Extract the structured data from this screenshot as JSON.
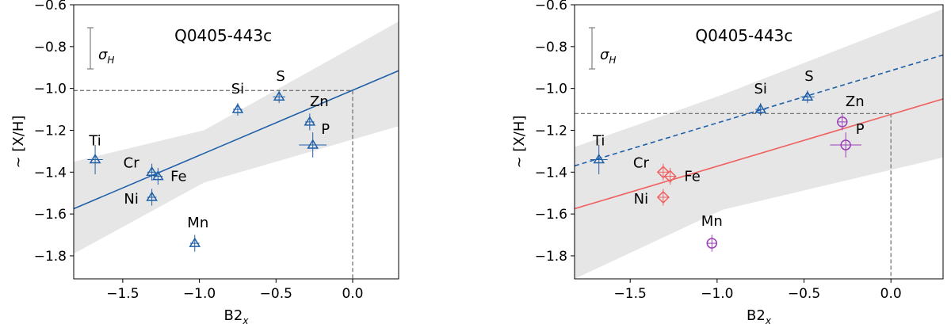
{
  "chart_data": [
    {
      "type": "scatter",
      "title": "Q0405-443c",
      "xlabel": "B2",
      "xlabel_sub": "x",
      "ylabel": "~ [X/H]",
      "xlim": [
        -1.82,
        0.3
      ],
      "ylim": [
        -1.91,
        -0.6
      ],
      "xticks": [
        -1.5,
        -1.0,
        -0.5,
        0.0
      ],
      "yticks": [
        -0.6,
        -0.8,
        -1.0,
        -1.2,
        -1.4,
        -1.6,
        -1.8
      ],
      "legend_scale_label": "σ",
      "legend_scale_sub": "H",
      "colors": {
        "points": "#1f5fa8",
        "fit": "#1f5fa8",
        "band": "#e6e6e6"
      },
      "points": [
        {
          "label": "Ti",
          "x": -1.68,
          "y": -1.34,
          "xerr": 0.05,
          "yerr": 0.07,
          "marker": "triangle"
        },
        {
          "label": "Cr",
          "x": -1.31,
          "y": -1.4,
          "xerr": 0.03,
          "yerr": 0.04,
          "marker": "triangle"
        },
        {
          "label": "Fe",
          "x": -1.27,
          "y": -1.42,
          "xerr": 0.03,
          "yerr": 0.04,
          "marker": "triangle"
        },
        {
          "label": "Ni",
          "x": -1.31,
          "y": -1.52,
          "xerr": 0.03,
          "yerr": 0.04,
          "marker": "triangle"
        },
        {
          "label": "Mn",
          "x": -1.03,
          "y": -1.74,
          "xerr": 0.03,
          "yerr": 0.04,
          "marker": "triangle"
        },
        {
          "label": "Si",
          "x": -0.75,
          "y": -1.1,
          "xerr": 0.03,
          "yerr": 0.03,
          "marker": "triangle"
        },
        {
          "label": "S",
          "x": -0.48,
          "y": -1.04,
          "xerr": 0.04,
          "yerr": 0.03,
          "marker": "triangle"
        },
        {
          "label": "Zn",
          "x": -0.28,
          "y": -1.16,
          "xerr": 0.03,
          "yerr": 0.04,
          "marker": "triangle"
        },
        {
          "label": "P",
          "x": -0.26,
          "y": -1.27,
          "xerr": 0.09,
          "yerr": 0.06,
          "marker": "triangle"
        }
      ]
    },
    {
      "type": "scatter",
      "title": "Q0405-443c",
      "xlabel": "B2",
      "xlabel_sub": "x",
      "ylabel": "~ [X/H]",
      "xlim": [
        -1.82,
        0.3
      ],
      "ylim": [
        -1.91,
        -0.6
      ],
      "xticks": [
        -1.5,
        -1.0,
        -0.5,
        0.0
      ],
      "yticks": [
        -0.6,
        -0.8,
        -1.0,
        -1.2,
        -1.4,
        -1.6,
        -1.8
      ],
      "legend_scale_label": "σ",
      "legend_scale_sub": "H",
      "colors": {
        "triangle": "#1f5fa8",
        "diamond": "#f06060",
        "circle": "#9b3fb8",
        "band": "#e6e6e6"
      },
      "points": [
        {
          "label": "Ti",
          "x": -1.68,
          "y": -1.34,
          "xerr": 0.05,
          "yerr": 0.07,
          "marker": "triangle"
        },
        {
          "label": "Si",
          "x": -0.75,
          "y": -1.1,
          "xerr": 0.03,
          "yerr": 0.03,
          "marker": "triangle"
        },
        {
          "label": "S",
          "x": -0.48,
          "y": -1.04,
          "xerr": 0.04,
          "yerr": 0.03,
          "marker": "triangle"
        },
        {
          "label": "Cr",
          "x": -1.31,
          "y": -1.4,
          "xerr": 0.03,
          "yerr": 0.04,
          "marker": "diamond"
        },
        {
          "label": "Fe",
          "x": -1.27,
          "y": -1.42,
          "xerr": 0.03,
          "yerr": 0.04,
          "marker": "diamond"
        },
        {
          "label": "Ni",
          "x": -1.31,
          "y": -1.52,
          "xerr": 0.03,
          "yerr": 0.04,
          "marker": "diamond"
        },
        {
          "label": "Zn",
          "x": -0.28,
          "y": -1.16,
          "xerr": 0.03,
          "yerr": 0.04,
          "marker": "circle"
        },
        {
          "label": "P",
          "x": -0.26,
          "y": -1.27,
          "xerr": 0.09,
          "yerr": 0.06,
          "marker": "circle"
        },
        {
          "label": "Mn",
          "x": -1.03,
          "y": -1.74,
          "xerr": 0.03,
          "yerr": 0.04,
          "marker": "circle"
        }
      ]
    }
  ]
}
